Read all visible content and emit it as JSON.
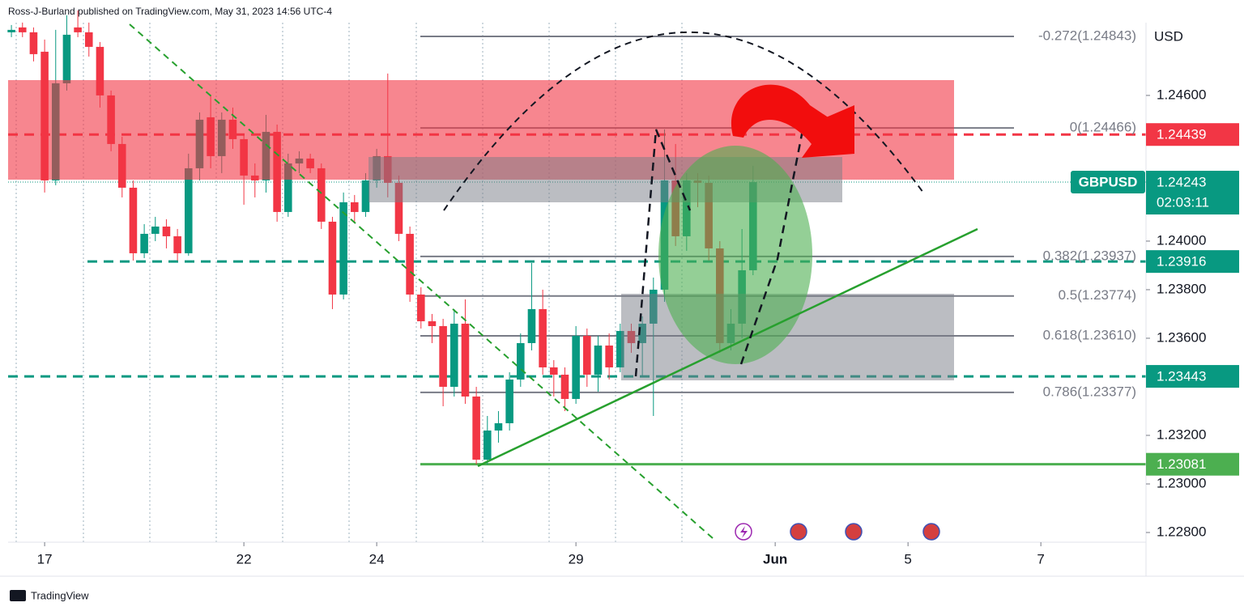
{
  "header": {
    "byline": "Ross-J-Burland published on TradingView.com, May 31, 2023 14:56 UTC-4"
  },
  "chart_data": {
    "type": "candlestick",
    "symbol": "GBPUSD",
    "currency": "USD",
    "x": [
      0,
      1,
      2,
      3,
      4,
      5,
      6,
      7,
      8,
      9,
      10,
      11,
      12,
      13,
      14,
      15,
      16,
      17,
      18,
      19,
      20,
      21,
      22,
      23,
      24,
      25,
      26,
      27,
      28,
      29,
      30,
      31,
      32,
      33,
      34,
      35,
      36,
      37,
      38,
      39,
      40,
      41,
      42,
      43,
      44,
      45,
      46,
      47,
      48,
      49,
      50,
      51,
      52,
      53,
      54,
      55,
      56,
      57,
      58,
      59,
      60,
      61,
      62,
      63,
      64,
      65,
      66,
      67
    ],
    "open": [
      1.2486,
      1.2488,
      1.2486,
      1.2478,
      1.2425,
      1.2465,
      1.2488,
      1.2486,
      1.248,
      1.246,
      1.244,
      1.2422,
      1.2395,
      1.2403,
      1.2406,
      1.2402,
      1.2395,
      1.243,
      1.2451,
      1.2435,
      1.245,
      1.2442,
      1.2427,
      1.2425,
      1.2445,
      1.2412,
      1.2432,
      1.2434,
      1.243,
      1.2408,
      1.2378,
      1.2416,
      1.2412,
      1.2425,
      1.2435,
      1.2424,
      1.2403,
      1.2378,
      1.2367,
      1.2365,
      1.234,
      1.2366,
      1.2336,
      1.231,
      1.2322,
      1.2325,
      1.2343,
      1.2358,
      1.2372,
      1.2348,
      1.2345,
      1.2335,
      1.2361,
      1.2345,
      1.2357,
      1.2348,
      1.2363,
      1.2358,
      1.2366,
      1.238,
      1.2425,
      1.2402,
      1.2425,
      1.2424,
      1.2397,
      1.2358,
      1.2366,
      1.2388
    ],
    "high": [
      1.2489,
      1.249,
      1.2488,
      1.2483,
      1.2487,
      1.2493,
      1.2495,
      1.249,
      1.2482,
      1.2462,
      1.2443,
      1.2425,
      1.2407,
      1.241,
      1.2409,
      1.2405,
      1.2436,
      1.2453,
      1.246,
      1.2453,
      1.2455,
      1.2444,
      1.2432,
      1.2452,
      1.2448,
      1.2436,
      1.2437,
      1.2436,
      1.2432,
      1.241,
      1.242,
      1.2419,
      1.2428,
      1.2438,
      1.2469,
      1.2427,
      1.2406,
      1.2381,
      1.237,
      1.2368,
      1.2372,
      1.2376,
      1.234,
      1.2328,
      1.233,
      1.2346,
      1.2362,
      1.2391,
      1.238,
      1.2351,
      1.2348,
      1.2365,
      1.2364,
      1.2361,
      1.2362,
      1.2366,
      1.2366,
      1.2369,
      1.2385,
      1.2446,
      1.244,
      1.2428,
      1.2428,
      1.2427,
      1.24,
      1.2372,
      1.2405,
      1.2431
    ],
    "low": [
      1.2484,
      1.2484,
      1.2474,
      1.242,
      1.2423,
      1.2462,
      1.2484,
      1.2476,
      1.2455,
      1.2437,
      1.2418,
      1.2392,
      1.2393,
      1.24,
      1.2397,
      1.2392,
      1.2394,
      1.2425,
      1.243,
      1.2428,
      1.2438,
      1.2415,
      1.2418,
      1.242,
      1.2408,
      1.241,
      1.2428,
      1.2428,
      1.2405,
      1.2372,
      1.2376,
      1.2408,
      1.241,
      1.2422,
      1.2418,
      1.24,
      1.2375,
      1.2364,
      1.2358,
      1.2332,
      1.2336,
      1.2333,
      1.23081,
      1.2308,
      1.2317,
      1.2322,
      1.234,
      1.2355,
      1.2345,
      1.2336,
      1.233,
      1.2333,
      1.234,
      1.2338,
      1.2343,
      1.2346,
      1.2354,
      1.2344,
      1.2328,
      1.2375,
      1.2398,
      1.2396,
      1.2414,
      1.2392,
      1.2354,
      1.2355,
      1.236,
      1.2386
    ],
    "close": [
      1.2487,
      1.2486,
      1.2477,
      1.2425,
      1.2465,
      1.2485,
      1.2486,
      1.248,
      1.246,
      1.244,
      1.2422,
      1.2395,
      1.2403,
      1.2406,
      1.2402,
      1.2395,
      1.243,
      1.245,
      1.2435,
      1.245,
      1.2442,
      1.2427,
      1.2425,
      1.2445,
      1.2412,
      1.2432,
      1.2434,
      1.243,
      1.2408,
      1.2378,
      1.2416,
      1.2412,
      1.2425,
      1.2435,
      1.2424,
      1.2403,
      1.2378,
      1.2367,
      1.2365,
      1.234,
      1.2366,
      1.2336,
      1.231,
      1.2322,
      1.2325,
      1.2343,
      1.2358,
      1.2372,
      1.2348,
      1.2345,
      1.2335,
      1.2361,
      1.2345,
      1.2357,
      1.2348,
      1.2363,
      1.2358,
      1.2366,
      1.238,
      1.2425,
      1.2402,
      1.2425,
      1.2424,
      1.2397,
      1.2358,
      1.2366,
      1.2388,
      1.24243
    ],
    "up_color": "#089981",
    "down_color": "#f23645",
    "xlim": [
      -0.3,
      102.5
    ],
    "xticks": [
      {
        "value": 3,
        "label": "17"
      },
      {
        "value": 21,
        "label": "22"
      },
      {
        "value": 33,
        "label": "24"
      },
      {
        "value": 51,
        "label": "29"
      },
      {
        "value": 69,
        "label": "Jun"
      },
      {
        "value": 81,
        "label": "5"
      },
      {
        "value": 93,
        "label": "7"
      }
    ],
    "ylim": [
      1.2276,
      1.24993
    ],
    "yticks": [
      {
        "value": 1.246,
        "label": "1.24600"
      },
      {
        "value": 1.24,
        "label": "1.24000"
      },
      {
        "value": 1.238,
        "label": "1.23800"
      },
      {
        "value": 1.236,
        "label": "1.23600"
      },
      {
        "value": 1.232,
        "label": "1.23200"
      },
      {
        "value": 1.23,
        "label": "1.23000"
      },
      {
        "value": 1.228,
        "label": "1.22800"
      }
    ],
    "last_price": 1.24243,
    "countdown": "02:03:11",
    "last_color": "#089981",
    "fib_levels": [
      {
        "label": "-0.272(1.24843)",
        "value": 1.24843
      },
      {
        "label": "0(1.24466)",
        "value": 1.24466
      },
      {
        "label": "0.382(1.23937)",
        "value": 1.23937
      },
      {
        "label": "0.5(1.23774)",
        "value": 1.23774
      },
      {
        "label": "0.618(1.23610)",
        "value": 1.2361
      },
      {
        "label": "0.786(1.23377)",
        "value": 1.23377
      }
    ],
    "fib_color": "#787b86",
    "price_lines": [
      {
        "value": 1.24439,
        "color": "#f23645",
        "style": "dashed"
      },
      {
        "value": 1.23916,
        "color": "#089981",
        "style": "dashed"
      },
      {
        "value": 1.23443,
        "color": "#089981",
        "style": "dashed"
      },
      {
        "value": 1.23081,
        "color": "#4caf50",
        "style": "solid"
      }
    ]
  },
  "footer": {
    "brand": "TradingView"
  }
}
